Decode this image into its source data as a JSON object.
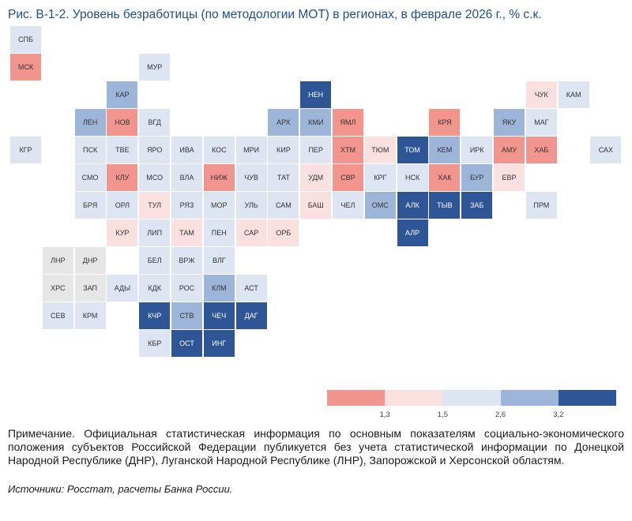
{
  "title": "Рис. В-1-2. Уровень безработицы (по методологии МОТ) в регионах, в феврале 2026 г., % с.к.",
  "colors": {
    "c1": "#f3958f",
    "c2": "#fbe0e0",
    "c3": "#dde5f2",
    "c4": "#9db5d9",
    "c5": "#2e5596",
    "na": "#e6e6e6"
  },
  "regions": [
    {
      "label": "СПБ",
      "cat": "c3"
    },
    {
      "label": "МСК",
      "cat": "c1"
    },
    {
      "label": "МУР",
      "cat": "c3"
    },
    {
      "label": "КАР",
      "cat": "c4"
    },
    {
      "label": "НЕН",
      "cat": "c5"
    },
    {
      "label": "ЧУК",
      "cat": "c2"
    },
    {
      "label": "КАМ",
      "cat": "c3"
    },
    {
      "label": "ЛЕН",
      "cat": "c4"
    },
    {
      "label": "НОВ",
      "cat": "c1"
    },
    {
      "label": "ВГД",
      "cat": "c3"
    },
    {
      "label": "АРХ",
      "cat": "c4"
    },
    {
      "label": "КМИ",
      "cat": "c4"
    },
    {
      "label": "ЯМЛ",
      "cat": "c1"
    },
    {
      "label": "КРЯ",
      "cat": "c1"
    },
    {
      "label": "ЯКУ",
      "cat": "c4"
    },
    {
      "label": "МАГ",
      "cat": "c3"
    },
    {
      "label": "КГР",
      "cat": "c3"
    },
    {
      "label": "ПСК",
      "cat": "c3"
    },
    {
      "label": "ТВЕ",
      "cat": "c3"
    },
    {
      "label": "ЯРО",
      "cat": "c3"
    },
    {
      "label": "ИВА",
      "cat": "c3"
    },
    {
      "label": "КОС",
      "cat": "c3"
    },
    {
      "label": "МРИ",
      "cat": "c3"
    },
    {
      "label": "КИР",
      "cat": "c3"
    },
    {
      "label": "ПЕР",
      "cat": "c3"
    },
    {
      "label": "ХТМ",
      "cat": "c1"
    },
    {
      "label": "ТЮМ",
      "cat": "c2"
    },
    {
      "label": "ТОМ",
      "cat": "c5"
    },
    {
      "label": "КЕМ",
      "cat": "c4"
    },
    {
      "label": "ИРК",
      "cat": "c3"
    },
    {
      "label": "АМУ",
      "cat": "c1"
    },
    {
      "label": "ХАБ",
      "cat": "c1"
    },
    {
      "label": "САХ",
      "cat": "c3"
    },
    {
      "label": "СМО",
      "cat": "c3"
    },
    {
      "label": "КЛУ",
      "cat": "c1"
    },
    {
      "label": "МСО",
      "cat": "c3"
    },
    {
      "label": "ВЛА",
      "cat": "c3"
    },
    {
      "label": "НИЖ",
      "cat": "c1"
    },
    {
      "label": "ЧУВ",
      "cat": "c3"
    },
    {
      "label": "ТАТ",
      "cat": "c3"
    },
    {
      "label": "УДМ",
      "cat": "c2"
    },
    {
      "label": "СВР",
      "cat": "c1"
    },
    {
      "label": "КРГ",
      "cat": "c3"
    },
    {
      "label": "НСК",
      "cat": "c3"
    },
    {
      "label": "ХАК",
      "cat": "c1"
    },
    {
      "label": "БУР",
      "cat": "c4"
    },
    {
      "label": "ЕВР",
      "cat": "c2"
    },
    {
      "label": "БРЯ",
      "cat": "c3"
    },
    {
      "label": "ОРЛ",
      "cat": "c3"
    },
    {
      "label": "ТУЛ",
      "cat": "c2"
    },
    {
      "label": "РЯЗ",
      "cat": "c3"
    },
    {
      "label": "МОР",
      "cat": "c3"
    },
    {
      "label": "УЛЬ",
      "cat": "c3"
    },
    {
      "label": "САМ",
      "cat": "c3"
    },
    {
      "label": "БАШ",
      "cat": "c2"
    },
    {
      "label": "ЧЕЛ",
      "cat": "c3"
    },
    {
      "label": "ОМС",
      "cat": "c4"
    },
    {
      "label": "АЛК",
      "cat": "c5"
    },
    {
      "label": "ТЫВ",
      "cat": "c5"
    },
    {
      "label": "ЗАБ",
      "cat": "c5"
    },
    {
      "label": "ПРМ",
      "cat": "c3"
    },
    {
      "label": "КУР",
      "cat": "c2"
    },
    {
      "label": "ЛИП",
      "cat": "c3"
    },
    {
      "label": "ТАМ",
      "cat": "c2"
    },
    {
      "label": "ПЕН",
      "cat": "c3"
    },
    {
      "label": "САР",
      "cat": "c2"
    },
    {
      "label": "ОРБ",
      "cat": "c2"
    },
    {
      "label": "АЛР",
      "cat": "c5"
    },
    {
      "label": "ЛНР",
      "cat": "na"
    },
    {
      "label": "ДНР",
      "cat": "na"
    },
    {
      "label": "БЕЛ",
      "cat": "c3"
    },
    {
      "label": "ВРЖ",
      "cat": "c3"
    },
    {
      "label": "ВЛГ",
      "cat": "c3"
    },
    {
      "label": "ХРС",
      "cat": "na"
    },
    {
      "label": "ЗАП",
      "cat": "na"
    },
    {
      "label": "АДЫ",
      "cat": "c3"
    },
    {
      "label": "КДК",
      "cat": "c3"
    },
    {
      "label": "РОС",
      "cat": "c3"
    },
    {
      "label": "КЛМ",
      "cat": "c4"
    },
    {
      "label": "АСТ",
      "cat": "c3"
    },
    {
      "label": "СЕВ",
      "cat": "c3"
    },
    {
      "label": "КРМ",
      "cat": "c3"
    },
    {
      "label": "КЧР",
      "cat": "c5"
    },
    {
      "label": "СТВ",
      "cat": "c4"
    },
    {
      "label": "ЧЕЧ",
      "cat": "c5"
    },
    {
      "label": "ДАГ",
      "cat": "c5"
    },
    {
      "label": "КБР",
      "cat": "c3"
    },
    {
      "label": "ОСТ",
      "cat": "c5"
    },
    {
      "label": "ИНГ",
      "cat": "c5"
    }
  ],
  "legend": {
    "colors": [
      "c1",
      "c2",
      "c3",
      "c4",
      "c5"
    ],
    "thresholds": [
      "1,3",
      "1,5",
      "2,6",
      "3,2"
    ]
  },
  "note": "Примечание. Официальная статистическая информация по основным показателям социально-экономического положения субъектов Российской Федерации публикуется без учета статистической информации по Донецкой Народной Республике (ДНР), Луганской Народной Республике (ЛНР), Запорожской и Херсонской областям.",
  "sources": "Источники: Росстат, расчеты Банка России."
}
